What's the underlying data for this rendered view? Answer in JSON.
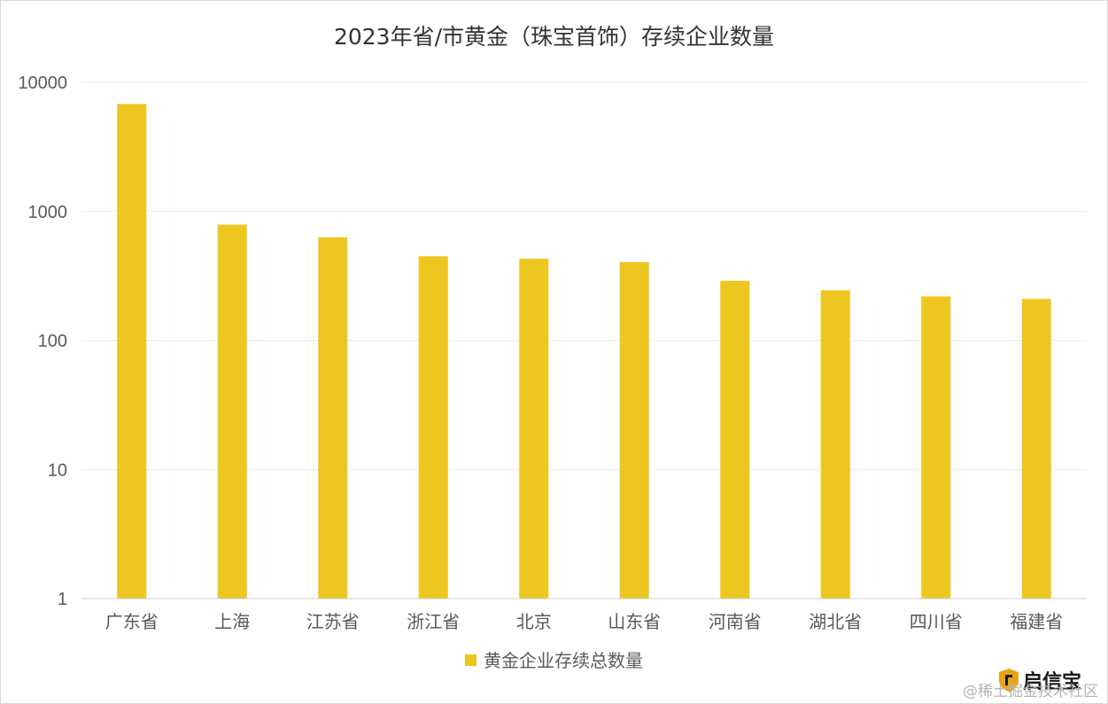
{
  "chart_data": {
    "type": "bar",
    "title": "2023年省/市黄金（珠宝首饰）存续企业数量",
    "categories": [
      "广东省",
      "上海",
      "江苏省",
      "浙江省",
      "北京",
      "山东省",
      "河南省",
      "湖北省",
      "四川省",
      "福建省"
    ],
    "series": [
      {
        "name": "黄金企业存续总数量",
        "values": [
          6800,
          790,
          630,
          450,
          430,
          405,
          290,
          245,
          220,
          210
        ]
      }
    ],
    "yscale": "log",
    "ylim": [
      1,
      10000
    ],
    "yticks": [
      "1",
      "10",
      "100",
      "1000",
      "10000"
    ],
    "grid": true,
    "legend_position": "bottom",
    "bar_color": "#EEC620"
  },
  "logo": {
    "text": "启信宝"
  },
  "watermark": "@稀土掘金技术社区"
}
